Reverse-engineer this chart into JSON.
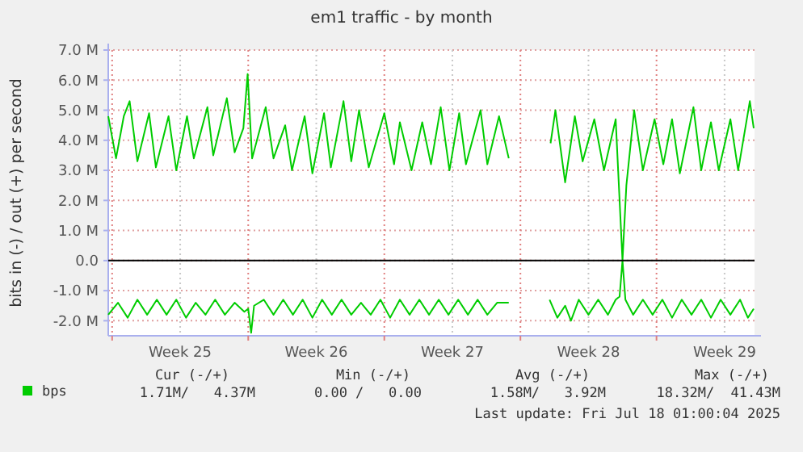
{
  "chart_data": {
    "type": "line",
    "title": "em1 traffic - by month",
    "ylabel": "bits in (-) / out (+) per second",
    "xlim": [
      "2025-06-14T19:12",
      "2025-07-18T01:00"
    ],
    "xticks": [
      {
        "value": "2025-06-15",
        "label": null
      },
      {
        "value": "2025-06-18T12:00",
        "label": "Week 25"
      },
      {
        "value": "2025-06-22",
        "label": null
      },
      {
        "value": "2025-06-25T12:00",
        "label": "Week 26"
      },
      {
        "value": "2025-06-29",
        "label": null
      },
      {
        "value": "2025-07-02T12:00",
        "label": "Week 27"
      },
      {
        "value": "2025-07-06",
        "label": null
      },
      {
        "value": "2025-07-09T12:00",
        "label": "Week 28"
      },
      {
        "value": "2025-07-13",
        "label": null
      },
      {
        "value": "2025-07-16T12:00",
        "label": "Week 29"
      }
    ],
    "ylim": [
      -2.5,
      7.0
    ],
    "yticks": [
      {
        "value": -2,
        "label": "-2.0 M"
      },
      {
        "value": -1,
        "label": "-1.0 M"
      },
      {
        "value": 0,
        "label": "0.0"
      },
      {
        "value": 1,
        "label": "1.0 M"
      },
      {
        "value": 2,
        "label": "2.0 M"
      },
      {
        "value": 3,
        "label": "3.0 M"
      },
      {
        "value": 4,
        "label": "4.0 M"
      },
      {
        "value": 5,
        "label": "5.0 M"
      },
      {
        "value": 6,
        "label": "6.0 M"
      },
      {
        "value": 7,
        "label": "7.0 M"
      }
    ],
    "grid": true,
    "legend": "bottom left",
    "line_style": "solid",
    "ref_lines": [
      {
        "axis": "y",
        "value": 0,
        "color": "#000000"
      }
    ],
    "series": [
      {
        "name": "bps",
        "color": "#00cc00",
        "x": [
          "2025-06-14T19:12",
          "2025-06-15T04:48",
          "2025-06-15T14:24",
          "2025-06-15T21:36",
          "2025-06-16T07:12",
          "2025-06-16T21:36",
          "2025-06-17T06:00",
          "2025-06-17T21:36",
          "2025-06-18T07:12",
          "2025-06-18T20:24",
          "2025-06-19T04:48",
          "2025-06-19T21:36",
          "2025-06-20T04:48",
          "2025-06-20T21:36",
          "2025-06-21T07:12",
          "2025-06-21T18:00",
          "2025-06-21T23:15",
          "2025-06-22T04:48",
          "2025-06-22T21:36",
          "2025-06-23T07:12",
          "2025-06-23T21:36",
          "2025-06-24T06:00",
          "2025-06-24T21:36",
          "2025-06-25T07:12",
          "2025-06-25T21:36",
          "2025-06-26T06:00",
          "2025-06-26T21:36",
          "2025-06-27T07:12",
          "2025-06-27T16:48",
          "2025-06-28T04:48",
          "2025-06-29T00:00",
          "2025-06-29T12:00",
          "2025-06-29T19:12",
          "2025-06-30T02:24",
          "2025-06-30T09:36",
          "2025-06-30T22:48",
          "2025-07-01T09:36",
          "2025-07-01T21:36",
          "2025-07-02T08:24",
          "2025-07-02T20:24",
          "2025-07-03T04:48",
          "2025-07-03T22:48",
          "2025-07-04T07:12",
          "2025-07-04T21:36",
          "2025-07-05T09:36",
          "2025-07-06T12:00",
          "2025-07-07T13:12",
          "2025-07-07T19:12",
          "2025-07-08T07:12",
          "2025-07-08T19:12",
          "2025-07-09T04:48",
          "2025-07-09T19:12",
          "2025-07-10T07:12",
          "2025-07-10T21:36",
          "2025-07-11T06:00",
          "2025-07-11T10:48",
          "2025-07-11T20:24",
          "2025-07-12T07:12",
          "2025-07-12T21:36",
          "2025-07-13T08:24",
          "2025-07-13T19:12",
          "2025-07-14T04:48",
          "2025-07-14T21:36",
          "2025-07-15T07:12",
          "2025-07-15T19:12",
          "2025-07-16T04:48",
          "2025-07-16T19:12",
          "2025-07-17T04:48",
          "2025-07-17T19:12",
          "2025-07-18T00:00"
        ],
        "values": [
          4.8,
          3.4,
          4.8,
          5.3,
          3.3,
          4.9,
          3.1,
          4.8,
          3.0,
          4.8,
          3.4,
          5.1,
          3.5,
          5.4,
          3.6,
          4.4,
          6.2,
          3.4,
          5.1,
          3.4,
          4.5,
          3.0,
          4.8,
          2.9,
          4.9,
          3.1,
          5.3,
          3.3,
          5.0,
          3.1,
          4.9,
          3.2,
          4.6,
          3.8,
          3.0,
          4.6,
          3.2,
          5.1,
          3.0,
          4.9,
          3.2,
          5.0,
          3.2,
          4.8,
          3.4,
          null,
          3.9,
          5.0,
          2.6,
          4.8,
          3.3,
          4.7,
          3.0,
          4.7,
          0,
          2.5,
          5.0,
          3.0,
          4.7,
          3.2,
          4.7,
          2.9,
          5.1,
          3.0,
          4.6,
          3.0,
          4.7,
          3.0,
          5.3,
          4.4
        ]
      },
      {
        "color": "#00cc00",
        "x": [
          "2025-06-14T19:12",
          "2025-06-15T07:12",
          "2025-06-15T19:12",
          "2025-06-16T07:12",
          "2025-06-16T19:12",
          "2025-06-17T07:12",
          "2025-06-17T19:12",
          "2025-06-18T07:12",
          "2025-06-18T19:12",
          "2025-06-19T07:12",
          "2025-06-19T19:12",
          "2025-06-20T07:12",
          "2025-06-20T19:12",
          "2025-06-21T07:12",
          "2025-06-21T19:12",
          "2025-06-22T00:00",
          "2025-06-22T03:36",
          "2025-06-22T07:12",
          "2025-06-22T19:12",
          "2025-06-23T07:12",
          "2025-06-23T19:12",
          "2025-06-24T07:12",
          "2025-06-24T19:12",
          "2025-06-25T07:12",
          "2025-06-25T19:12",
          "2025-06-26T07:12",
          "2025-06-26T19:12",
          "2025-06-27T07:12",
          "2025-06-27T19:12",
          "2025-06-28T07:12",
          "2025-06-28T19:12",
          "2025-06-29T07:12",
          "2025-06-29T19:12",
          "2025-06-30T07:12",
          "2025-06-30T19:12",
          "2025-07-01T07:12",
          "2025-07-01T19:12",
          "2025-07-02T07:12",
          "2025-07-02T19:12",
          "2025-07-03T07:12",
          "2025-07-03T19:12",
          "2025-07-04T07:12",
          "2025-07-04T19:12",
          "2025-07-05T09:36",
          "2025-07-06T12:00",
          "2025-07-07T12:00",
          "2025-07-07T21:36",
          "2025-07-08T07:12",
          "2025-07-08T14:24",
          "2025-07-09T00:00",
          "2025-07-09T12:00",
          "2025-07-10T00:00",
          "2025-07-10T12:00",
          "2025-07-10T21:36",
          "2025-07-11T02:24",
          "2025-07-11T06:00",
          "2025-07-11T09:36",
          "2025-07-11T19:12",
          "2025-07-12T07:12",
          "2025-07-12T19:12",
          "2025-07-13T07:12",
          "2025-07-13T19:12",
          "2025-07-14T07:12",
          "2025-07-14T19:12",
          "2025-07-15T07:12",
          "2025-07-15T19:12",
          "2025-07-16T07:12",
          "2025-07-16T19:12",
          "2025-07-17T07:12",
          "2025-07-17T16:48",
          "2025-07-18T00:00"
        ],
        "values": [
          -1.8,
          -1.4,
          -1.9,
          -1.3,
          -1.8,
          -1.3,
          -1.8,
          -1.3,
          -1.9,
          -1.4,
          -1.8,
          -1.3,
          -1.8,
          -1.4,
          -1.7,
          -1.6,
          -2.4,
          -1.5,
          -1.3,
          -1.8,
          -1.3,
          -1.8,
          -1.3,
          -1.9,
          -1.3,
          -1.8,
          -1.3,
          -1.8,
          -1.4,
          -1.8,
          -1.3,
          -1.9,
          -1.3,
          -1.8,
          -1.3,
          -1.8,
          -1.3,
          -1.8,
          -1.3,
          -1.8,
          -1.3,
          -1.8,
          -1.4,
          -1.4,
          null,
          -1.3,
          -1.9,
          -1.5,
          -2.0,
          -1.3,
          -1.8,
          -1.3,
          -1.8,
          -1.3,
          -1.2,
          0,
          -1.3,
          -1.8,
          -1.3,
          -1.8,
          -1.3,
          -1.9,
          -1.3,
          -1.8,
          -1.3,
          -1.9,
          -1.3,
          -1.8,
          -1.3,
          -1.9,
          -1.6
        ]
      }
    ],
    "annotations": [
      "Cur (-/+)",
      "Min (-/+)",
      "Avg (-/+)",
      "Max (-/+)",
      "1.71M/   4.37M",
      "0.00 /   0.00",
      "1.58M/   3.92M",
      "18.32M/  41.43M",
      "Last update: Fri Jul 18 01:00:04 2025"
    ]
  }
}
